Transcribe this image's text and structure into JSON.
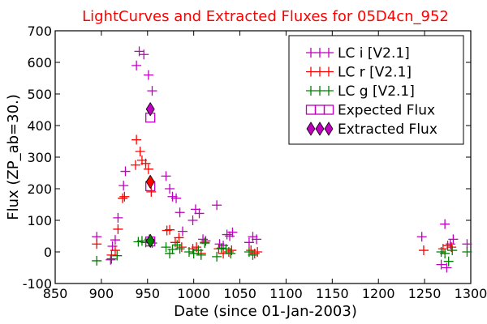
{
  "chart_data": {
    "type": "scatter",
    "title": "LightCurves and Extracted Fluxes for 05D4cn_952",
    "xlabel": "Date (since 01-Jan-2003)",
    "ylabel": "Flux (ZP_ab=30.)",
    "xlim": [
      850,
      1300
    ],
    "ylim": [
      -100,
      700
    ],
    "xticks": [
      850,
      900,
      950,
      1000,
      1050,
      1100,
      1150,
      1200,
      1250,
      1300
    ],
    "yticks": [
      -100,
      0,
      100,
      200,
      300,
      400,
      500,
      600,
      700
    ],
    "grid": false,
    "legend_position": "top-right",
    "series": [
      {
        "name": "LC i [V2.1]",
        "marker": "plus",
        "color": "#bf00bf",
        "points": [
          [
            895,
            48
          ],
          [
            910,
            -25
          ],
          [
            912,
            18
          ],
          [
            915,
            38
          ],
          [
            918,
            108
          ],
          [
            924,
            210
          ],
          [
            926,
            255
          ],
          [
            938,
            590
          ],
          [
            941,
            635
          ],
          [
            946,
            625
          ],
          [
            951,
            560
          ],
          [
            955,
            510
          ],
          [
            970,
            240
          ],
          [
            974,
            200
          ],
          [
            977,
            175
          ],
          [
            981,
            170
          ],
          [
            985,
            125
          ],
          [
            988,
            65
          ],
          [
            999,
            100
          ],
          [
            1002,
            135
          ],
          [
            1006,
            122
          ],
          [
            1010,
            40
          ],
          [
            1013,
            35
          ],
          [
            1025,
            148
          ],
          [
            1028,
            25
          ],
          [
            1032,
            20
          ],
          [
            1036,
            55
          ],
          [
            1039,
            50
          ],
          [
            1042,
            62
          ],
          [
            1060,
            30
          ],
          [
            1064,
            48
          ],
          [
            1068,
            40
          ],
          [
            1247,
            48
          ],
          [
            1268,
            -40
          ],
          [
            1272,
            88
          ],
          [
            1274,
            -50
          ],
          [
            1278,
            25
          ],
          [
            1281,
            40
          ],
          [
            1296,
            25
          ]
        ]
      },
      {
        "name": "LC r [V2.1]",
        "marker": "plus",
        "color": "#ff0000",
        "points": [
          [
            895,
            25
          ],
          [
            911,
            -10
          ],
          [
            915,
            5
          ],
          [
            918,
            72
          ],
          [
            923,
            170
          ],
          [
            925,
            175
          ],
          [
            937,
            275
          ],
          [
            938,
            355
          ],
          [
            942,
            318
          ],
          [
            944,
            290
          ],
          [
            948,
            280
          ],
          [
            951,
            262
          ],
          [
            954,
            190
          ],
          [
            971,
            68
          ],
          [
            974,
            70
          ],
          [
            980,
            30
          ],
          [
            984,
            45
          ],
          [
            987,
            15
          ],
          [
            999,
            10
          ],
          [
            1003,
            15
          ],
          [
            1008,
            -5
          ],
          [
            1012,
            30
          ],
          [
            1027,
            10
          ],
          [
            1032,
            -5
          ],
          [
            1038,
            0
          ],
          [
            1041,
            5
          ],
          [
            1062,
            5
          ],
          [
            1066,
            -5
          ],
          [
            1069,
            0
          ],
          [
            1249,
            5
          ],
          [
            1270,
            10
          ],
          [
            1275,
            20
          ],
          [
            1279,
            15
          ]
        ]
      },
      {
        "name": "LC g [V2.1]",
        "marker": "plus",
        "color": "#008000",
        "points": [
          [
            895,
            -28
          ],
          [
            911,
            -22
          ],
          [
            917,
            -12
          ],
          [
            940,
            32
          ],
          [
            944,
            35
          ],
          [
            948,
            30
          ],
          [
            952,
            40
          ],
          [
            955,
            28
          ],
          [
            970,
            15
          ],
          [
            974,
            -5
          ],
          [
            977,
            8
          ],
          [
            982,
            22
          ],
          [
            985,
            10
          ],
          [
            995,
            0
          ],
          [
            1000,
            -5
          ],
          [
            1005,
            5
          ],
          [
            1008,
            -10
          ],
          [
            1012,
            28
          ],
          [
            1025,
            -15
          ],
          [
            1030,
            12
          ],
          [
            1035,
            10
          ],
          [
            1040,
            -5
          ],
          [
            1060,
            0
          ],
          [
            1064,
            -10
          ],
          [
            1268,
            0
          ],
          [
            1272,
            -5
          ],
          [
            1276,
            -30
          ],
          [
            1280,
            5
          ],
          [
            1296,
            0
          ]
        ]
      },
      {
        "name": "Expected Flux",
        "marker": "square-open",
        "color": "#bf00bf",
        "points": [
          [
            953,
            425
          ],
          [
            953,
            208
          ],
          [
            953,
            33
          ]
        ]
      },
      {
        "name": "Extracted Flux",
        "marker": "diamond-filled",
        "color": "#bf00bf",
        "points": [
          [
            953,
            452
          ]
        ]
      },
      {
        "name": "",
        "marker": "diamond-filled",
        "color": "#ff0000",
        "points": [
          [
            953,
            222
          ]
        ]
      },
      {
        "name": "",
        "marker": "diamond-filled",
        "color": "#008000",
        "points": [
          [
            953,
            35
          ]
        ]
      }
    ],
    "legend": [
      {
        "label": "LC i [V2.1]",
        "marker": "plus",
        "color": "#bf00bf"
      },
      {
        "label": "LC r [V2.1]",
        "marker": "plus",
        "color": "#ff0000"
      },
      {
        "label": "LC g [V2.1]",
        "marker": "plus",
        "color": "#008000"
      },
      {
        "label": "Expected Flux",
        "marker": "square-open",
        "color": "#bf00bf"
      },
      {
        "label": "Extracted Flux",
        "marker": "diamond-filled",
        "color": "#bf00bf"
      }
    ]
  }
}
